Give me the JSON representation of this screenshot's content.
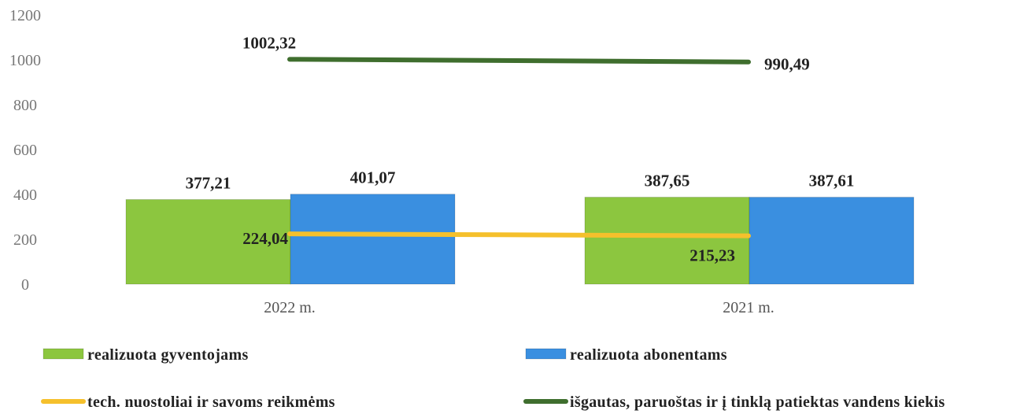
{
  "chart_data": {
    "type": "bar",
    "categories": [
      "2022 m.",
      "2021 m."
    ],
    "yticks": [
      "0",
      "200",
      "400",
      "600",
      "800",
      "1000",
      "1200"
    ],
    "ylim": [
      0,
      1200
    ],
    "grid": false,
    "legend_position": "bottom",
    "series": [
      {
        "name": "realizuota gyventojams",
        "kind": "bar",
        "color": "#8cc63f",
        "values": [
          377.21,
          387.65
        ],
        "labels": [
          "377,21",
          "387,65"
        ]
      },
      {
        "name": "realizuota abonentams",
        "kind": "bar",
        "color": "#3a8fe0",
        "values": [
          401.07,
          387.61
        ],
        "labels": [
          "401,07",
          "387,61"
        ]
      },
      {
        "name": "tech. nuostoliai ir savoms reikmėms",
        "kind": "line",
        "color": "#f5c02c",
        "values": [
          224.04,
          215.23
        ],
        "labels": [
          "224,04",
          "215,23"
        ]
      },
      {
        "name": "išgautas, paruoštas ir į tinklą patiektas vandens kiekis",
        "kind": "line",
        "color": "#3f6e2e",
        "values": [
          1002.32,
          990.49
        ],
        "labels": [
          "1002,32",
          "990,49"
        ]
      }
    ]
  }
}
